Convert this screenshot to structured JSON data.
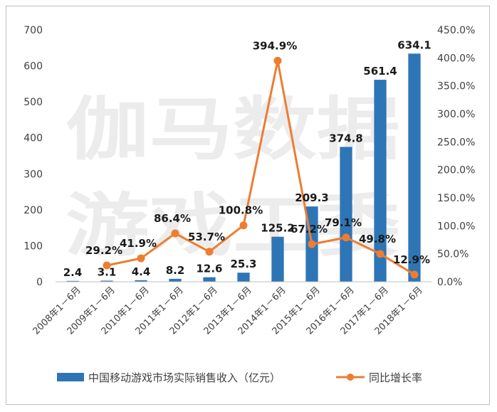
{
  "chart_data": {
    "type": "bar",
    "categories": [
      "2008年1－6月",
      "2009年1－6月",
      "2010年1－6月",
      "2011年1－6月",
      "2012年1－6月",
      "2013年1－6月",
      "2014年1－6月",
      "2015年1－6月",
      "2016年1－6月",
      "2017年1－6月",
      "2018年1－6月"
    ],
    "series": [
      {
        "name": "中国移动游戏市场实际销售收入（亿元）",
        "type": "bar",
        "axis": "left",
        "color": "#2e75b6",
        "values": [
          2.4,
          3.1,
          4.4,
          8.2,
          12.6,
          25.3,
          125.2,
          209.3,
          374.8,
          561.4,
          634.1
        ],
        "labels": [
          "2.4",
          "3.1",
          "4.4",
          "8.2",
          "12.6",
          "25.3",
          "125.2",
          "209.3",
          "374.8",
          "561.4",
          "634.1"
        ]
      },
      {
        "name": "同比增长率",
        "type": "line",
        "axis": "right",
        "color": "#ed7d31",
        "values": [
          null,
          29.2,
          41.9,
          86.4,
          53.7,
          100.8,
          394.9,
          67.2,
          79.1,
          49.8,
          12.9
        ],
        "labels": [
          "",
          "29.2%",
          "41.9%",
          "86.4%",
          "53.7%",
          "100.8%",
          "394.9%",
          "67.2%",
          "79.1%",
          "49.8%",
          "12.9%"
        ]
      }
    ],
    "ylim": [
      0,
      700
    ],
    "y_ticks": [
      "0",
      "100",
      "200",
      "300",
      "400",
      "500",
      "600",
      "700"
    ],
    "y2lim": [
      0,
      450
    ],
    "y2_ticks": [
      "0.0%",
      "50.0%",
      "100.0%",
      "150.0%",
      "200.0%",
      "250.0%",
      "300.0%",
      "350.0%",
      "400.0%",
      "450.0%"
    ],
    "legend_position": "bottom",
    "grid": false
  },
  "watermark": {
    "line1": "伽马数据",
    "line2": "游戏工委"
  }
}
